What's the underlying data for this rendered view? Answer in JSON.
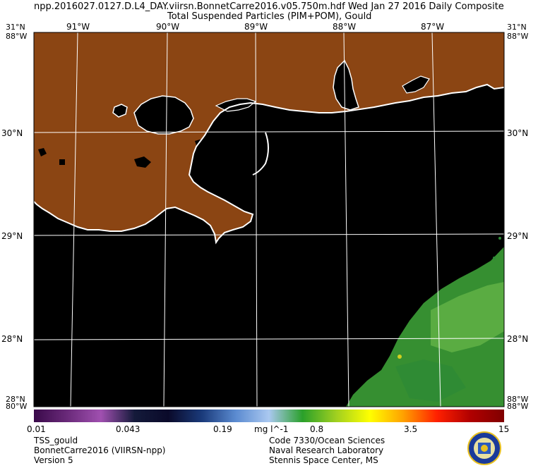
{
  "header": {
    "line1": "npp.2016027.0127.D.L4_DAY.viirsn.BonnetCarre2016.v05.750m.hdf    Wed Jan 27 2016 Daily Composite",
    "line2": "Total Suspended Particles (PIM+POM), Gould"
  },
  "map": {
    "colors": {
      "land": "#8B4513",
      "water": "#000000",
      "grid": "#ffffff",
      "coast": "#ffffff"
    },
    "lon_labels": [
      "91°W",
      "90°W",
      "89°W",
      "88°W",
      "87°W"
    ],
    "lat_labels": [
      "30°N",
      "29°N",
      "28°N"
    ],
    "corner_labels": {
      "top_left_lat": "31°N",
      "top_right_lat": "31°N",
      "top_left_lon": "88°W",
      "top_right_lon": "88°W",
      "bottom_left_lat": "28°N",
      "bottom_right_lat": "88°W",
      "bottom_left_lon": "80°W",
      "bottom_right_lon": "88°W"
    }
  },
  "colorbar": {
    "stops": [
      "#3a0a4a",
      "#6a2a7a",
      "#a050b0",
      "#141a3a",
      "#0a0a2a",
      "#1a3a7a",
      "#5a8ad0",
      "#aac8f0",
      "#2aa02a",
      "#a0d020",
      "#ffff00",
      "#ffa000",
      "#ff2000",
      "#b00000",
      "#800000"
    ],
    "labels": [
      "0.01",
      "0.043",
      "0.19",
      "0.8",
      "3.5",
      "15"
    ],
    "unit": "mg l^-1"
  },
  "footer": {
    "left": [
      "TSS_gould",
      "BonnetCarre2016 (VIIRSN-npp)",
      "Version 5"
    ],
    "right": [
      "Code 7330/Ocean Sciences",
      "Naval Research Laboratory",
      "Stennis Space Center, MS"
    ]
  }
}
